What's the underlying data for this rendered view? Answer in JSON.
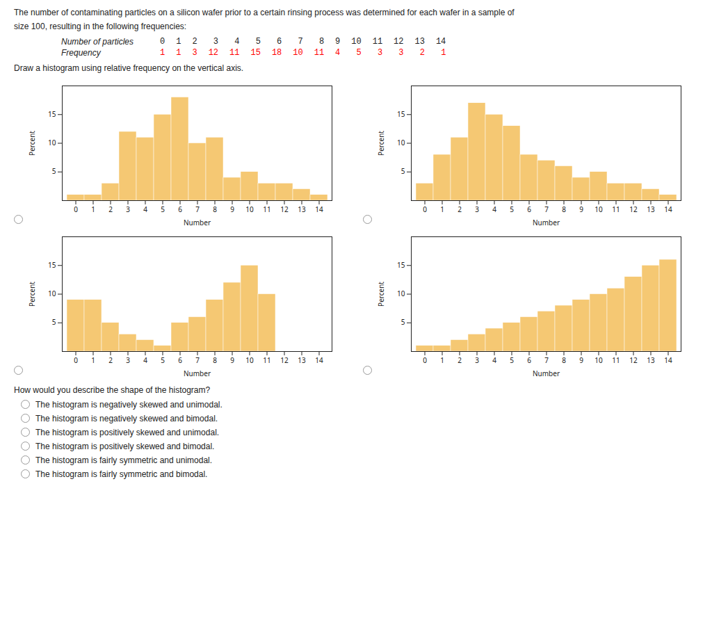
{
  "title": "The number of contaminating particles on a silicon wafer prior to a certain rinsing process was determined for each wafer in a sample of",
  "subtitle": "size 100, resulting in the following frequencies:",
  "table": [
    {
      "label": "Number of particles",
      "values": [
        0,
        1,
        2,
        3,
        4,
        5,
        6,
        7,
        8,
        9,
        10,
        11,
        12,
        13,
        14
      ]
    },
    {
      "label": "Frequency",
      "values": [
        1,
        1,
        3,
        12,
        11,
        15,
        18,
        10,
        11,
        4,
        5,
        3,
        3,
        2,
        1
      ],
      "color": "red"
    }
  ],
  "annotations": [
    "Draw a histogram using relative frequency on the vertical axis.",
    "How would you describe the shape of the histogram?"
  ],
  "choices": [
    "The histogram is negatively skewed and unimodal.",
    "The histogram is negatively skewed and bimodal.",
    "The histogram is positively skewed and unimodal.",
    "The histogram is positively skewed and bimodal.",
    "The histogram is fairly symmetric and unimodal.",
    "The histogram is fairly symmetric and bimodal."
  ],
  "chart_data": [
    {
      "type": "bar",
      "categories": [
        "0",
        "1",
        "2",
        "3",
        "4",
        "5",
        "6",
        "7",
        "8",
        "9",
        "10",
        "11",
        "12",
        "13",
        "14"
      ],
      "values": [
        1,
        1,
        3,
        12,
        11,
        15,
        18,
        10,
        11,
        4,
        5,
        3,
        3,
        2,
        1
      ],
      "color": "#F5C873",
      "xlabel": "Number",
      "ylabel": "Percent",
      "ylim": [
        0,
        20
      ],
      "yticks": [
        5,
        10,
        15
      ]
    },
    {
      "type": "bar",
      "categories": [
        "0",
        "1",
        "2",
        "3",
        "4",
        "5",
        "6",
        "7",
        "8",
        "9",
        "10",
        "11",
        "12",
        "13",
        "14"
      ],
      "values": [
        3,
        8,
        11,
        17,
        15,
        13,
        8,
        7,
        6,
        4,
        5,
        3,
        3,
        2,
        1
      ],
      "color": "#F5C873",
      "xlabel": "Number",
      "ylabel": "Percent",
      "ylim": [
        0,
        20
      ],
      "yticks": [
        5,
        10,
        15
      ]
    },
    {
      "type": "bar",
      "categories": [
        "0",
        "1",
        "2",
        "3",
        "4",
        "5",
        "6",
        "7",
        "8",
        "9",
        "10",
        "11",
        "12",
        "13",
        "14"
      ],
      "values": [
        9,
        9,
        5,
        3,
        2,
        1,
        5,
        6,
        9,
        12,
        15,
        10,
        0,
        0,
        0
      ],
      "color": "#F5C873",
      "xlabel": "Number",
      "ylabel": "Percent",
      "ylim": [
        0,
        20
      ],
      "yticks": [
        5,
        10,
        15
      ]
    },
    {
      "type": "bar",
      "categories": [
        "0",
        "1",
        "2",
        "3",
        "4",
        "5",
        "6",
        "7",
        "8",
        "9",
        "10",
        "11",
        "12",
        "13",
        "14"
      ],
      "values": [
        1,
        1,
        2,
        3,
        4,
        5,
        6,
        7,
        8,
        9,
        10,
        11,
        13,
        15,
        16
      ],
      "color": "#F5C873",
      "xlabel": "Number",
      "ylabel": "Percent",
      "ylim": [
        0,
        20
      ],
      "yticks": [
        5,
        10,
        15
      ]
    }
  ]
}
